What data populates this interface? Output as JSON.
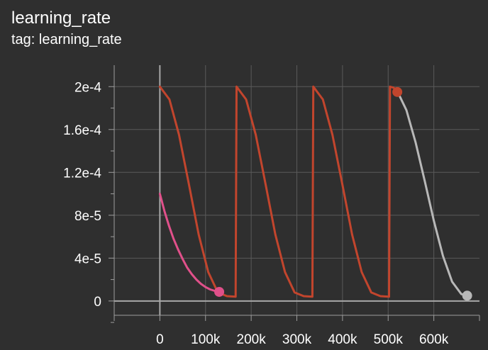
{
  "card": {
    "title": "learning_rate",
    "subtitle": "tag: learning_rate"
  },
  "colors": {
    "background": "#2f2f2f",
    "grid": "#5a5a5a",
    "axis": "#9e9e9e",
    "zero_lines": "#a8a8a8",
    "tick_text": "#ffffff"
  },
  "chart_data": {
    "type": "line",
    "title": "learning_rate",
    "xlabel": "",
    "ylabel": "",
    "xlim": [
      -100000,
      700000
    ],
    "ylim": [
      -1.333e-05,
      0.00022
    ],
    "grid": true,
    "legend": "none",
    "x_ticks": [
      {
        "value": 0,
        "label": "0"
      },
      {
        "value": 100000,
        "label": "100k"
      },
      {
        "value": 200000,
        "label": "200k"
      },
      {
        "value": 300000,
        "label": "300k"
      },
      {
        "value": 400000,
        "label": "400k"
      },
      {
        "value": 500000,
        "label": "500k"
      },
      {
        "value": 600000,
        "label": "600k"
      }
    ],
    "x_minor_ticks": [
      -100000,
      700000
    ],
    "y_ticks": [
      {
        "value": 0,
        "label": "0"
      },
      {
        "value": 4e-05,
        "label": "4e-5"
      },
      {
        "value": 8e-05,
        "label": "8e-5"
      },
      {
        "value": 0.00012,
        "label": "1.2e-4"
      },
      {
        "value": 0.00016,
        "label": "1.6e-4"
      },
      {
        "value": 0.0002,
        "label": "2e-4"
      }
    ],
    "y_minor_ticks": [
      -2e-05,
      2e-05,
      6e-05,
      0.0001,
      0.00014,
      0.00018
    ],
    "series": [
      {
        "color": "#c2452d",
        "end_marker": {
          "x": 520000,
          "y": 0.000195
        },
        "points": [
          [
            0,
            0.0002
          ],
          [
            21000,
            0.000188
          ],
          [
            42000,
            0.000155
          ],
          [
            64000,
            0.000108
          ],
          [
            85000,
            6.2e-05
          ],
          [
            106000,
            2.7e-05
          ],
          [
            127000,
            8e-06
          ],
          [
            147000,
            4.5e-06
          ],
          [
            166000,
            4e-06
          ],
          [
            168000,
            0.0002
          ],
          [
            189000,
            0.000188
          ],
          [
            210000,
            0.000155
          ],
          [
            232000,
            0.000108
          ],
          [
            253000,
            6.2e-05
          ],
          [
            274000,
            2.7e-05
          ],
          [
            295000,
            8e-06
          ],
          [
            315000,
            4.5e-06
          ],
          [
            334000,
            4e-06
          ],
          [
            336000,
            0.0002
          ],
          [
            357000,
            0.000188
          ],
          [
            378000,
            0.000155
          ],
          [
            400000,
            0.000108
          ],
          [
            421000,
            6.2e-05
          ],
          [
            442000,
            2.7e-05
          ],
          [
            463000,
            8e-06
          ],
          [
            483000,
            4.5e-06
          ],
          [
            502000,
            4e-06
          ],
          [
            504000,
            0.0002
          ],
          [
            512000,
            0.000199
          ],
          [
            520000,
            0.000195
          ]
        ]
      },
      {
        "color": "#e0508a",
        "end_marker": {
          "x": 130000,
          "y": 8.5e-06
        },
        "points": [
          [
            0,
            0.0001
          ],
          [
            10000,
            8.4e-05
          ],
          [
            20000,
            7e-05
          ],
          [
            30000,
            5.8e-05
          ],
          [
            40000,
            4.8e-05
          ],
          [
            50000,
            3.9e-05
          ],
          [
            60000,
            3.1e-05
          ],
          [
            70000,
            2.5e-05
          ],
          [
            80000,
            2e-05
          ],
          [
            90000,
            1.6e-05
          ],
          [
            100000,
            1.3e-05
          ],
          [
            110000,
            1.08e-05
          ],
          [
            120000,
            9.5e-06
          ],
          [
            130000,
            8.5e-06
          ]
        ]
      },
      {
        "color": "#b8b8b8",
        "end_marker": {
          "x": 673000,
          "y": 5e-06
        },
        "points": [
          [
            523000,
            0.000193
          ],
          [
            540000,
            0.000178
          ],
          [
            560000,
            0.000148
          ],
          [
            580000,
            0.000112
          ],
          [
            600000,
            7.5e-05
          ],
          [
            620000,
            4.2e-05
          ],
          [
            640000,
            1.8e-05
          ],
          [
            660000,
            6.5e-06
          ],
          [
            673000,
            5e-06
          ]
        ]
      }
    ]
  }
}
